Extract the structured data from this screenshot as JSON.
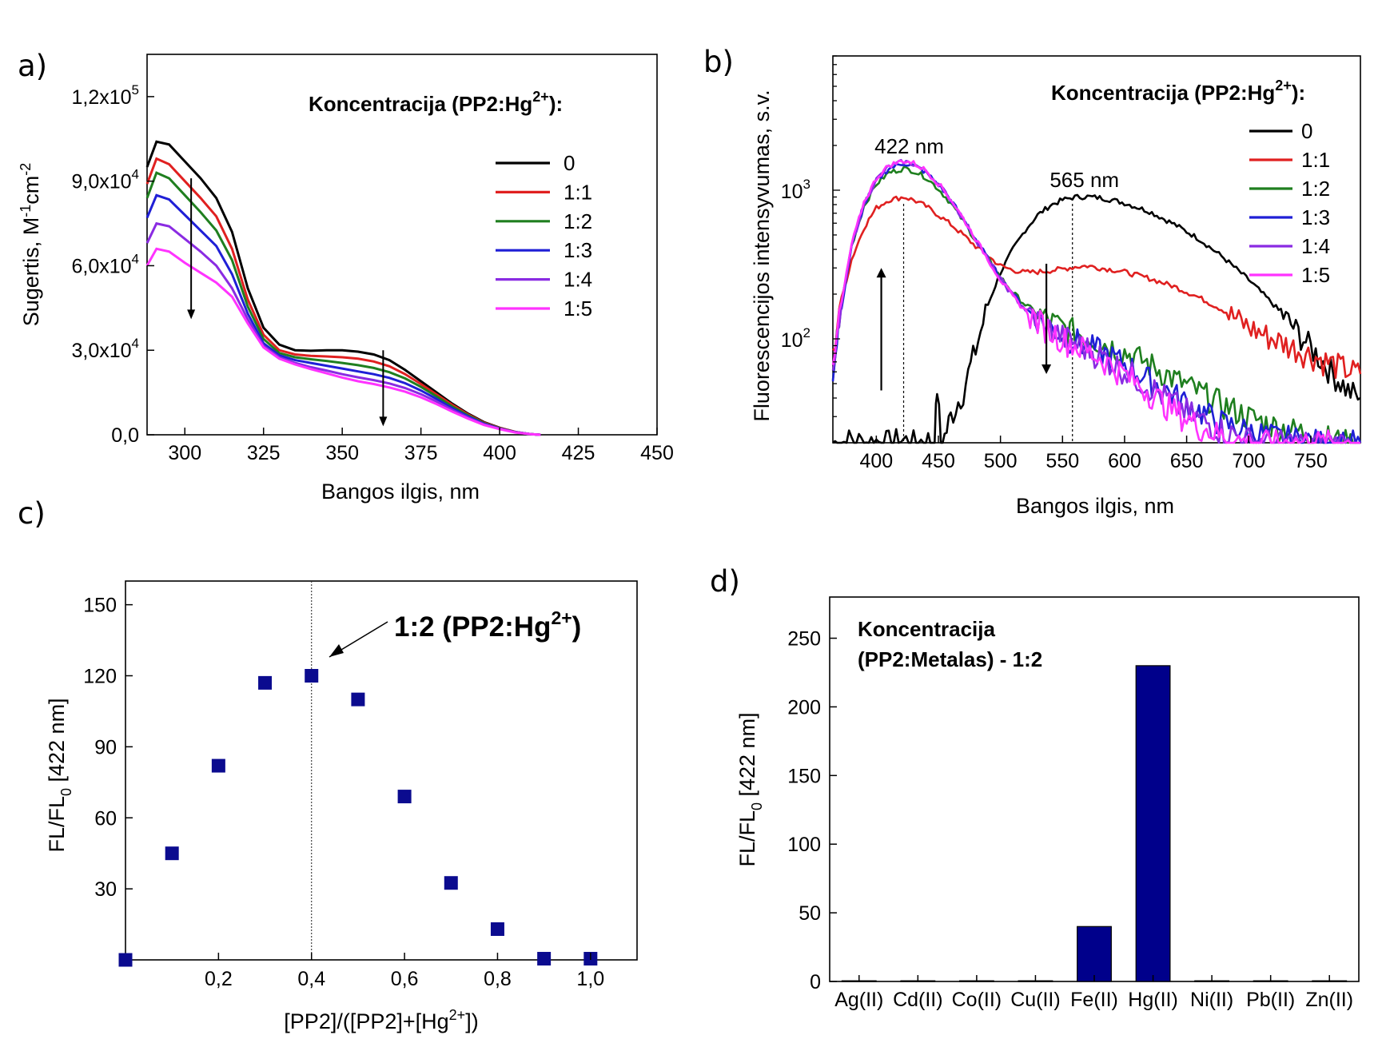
{
  "colors": {
    "s0": "#000000",
    "s11": "#e02020",
    "s12": "#1f7f1f",
    "s13": "#1f1fd6",
    "s14": "#8a2be2",
    "s15": "#ff33ff",
    "marker": "#0b0b8f",
    "bar": "#00008b"
  },
  "chart_data": [
    {
      "panel": "a)",
      "type": "line",
      "xlabel": "Bangos ilgis, nm",
      "ylabel_main": "Sugertis, M",
      "ylabel_sup1": "-1",
      "ylabel_mid": "cm",
      "ylabel_sup2": "-2",
      "xlim": [
        288,
        450
      ],
      "ylim": [
        0,
        135000
      ],
      "xticks": [
        "300",
        "325",
        "350",
        "375",
        "400",
        "425",
        "450"
      ],
      "yticks": [
        {
          "value": 0,
          "label": "0,0",
          "exp": ""
        },
        {
          "value": 30000,
          "label": "3,0x10",
          "exp": "4"
        },
        {
          "value": 60000,
          "label": "6,0x10",
          "exp": "4"
        },
        {
          "value": 90000,
          "label": "9,0x10",
          "exp": "4"
        },
        {
          "value": 120000,
          "label": "1,2x10",
          "exp": "5"
        }
      ],
      "legend_title": "Koncentracija (PP2:Hg",
      "legend_title_sup": "2+",
      "legend_title_end": "):",
      "legend_position": "right",
      "arrows": [
        {
          "x": 302,
          "from": 91000,
          "to": 41000
        },
        {
          "x": 363,
          "from": 30000,
          "to": 3000
        }
      ],
      "series": [
        {
          "name": "0",
          "x": [
            288,
            291,
            295,
            300,
            305,
            310,
            315,
            320,
            325,
            330,
            335,
            340,
            345,
            350,
            355,
            360,
            365,
            370,
            375,
            380,
            385,
            390,
            395,
            400,
            405,
            410,
            413
          ],
          "y": [
            95000,
            104000,
            103000,
            97000,
            91000,
            84000,
            72000,
            52000,
            38000,
            32000,
            30000,
            29800,
            30000,
            30000,
            29500,
            28500,
            26500,
            23000,
            19000,
            15000,
            11000,
            7500,
            4500,
            2500,
            1000,
            200,
            0
          ]
        },
        {
          "name": "1:1",
          "x": [
            288,
            291,
            295,
            300,
            305,
            310,
            315,
            320,
            325,
            330,
            335,
            340,
            345,
            350,
            355,
            360,
            365,
            370,
            375,
            380,
            385,
            390,
            395,
            400,
            405,
            410,
            413
          ],
          "y": [
            89000,
            98000,
            96000,
            90000,
            84000,
            77500,
            66000,
            48000,
            35500,
            30000,
            28500,
            28000,
            27800,
            27500,
            27000,
            26000,
            24300,
            21500,
            18000,
            14300,
            10600,
            7200,
            4300,
            2400,
            1000,
            200,
            0
          ]
        },
        {
          "name": "1:2",
          "x": [
            288,
            291,
            295,
            300,
            305,
            310,
            315,
            320,
            325,
            330,
            335,
            340,
            345,
            350,
            355,
            360,
            365,
            370,
            375,
            380,
            385,
            390,
            395,
            400,
            405,
            410,
            413
          ],
          "y": [
            84000,
            93000,
            91000,
            85000,
            79000,
            72500,
            62000,
            45500,
            34000,
            29000,
            27500,
            26800,
            26200,
            25500,
            24700,
            23700,
            22200,
            20000,
            17000,
            13600,
            10000,
            6900,
            4100,
            2300,
            900,
            200,
            0
          ]
        },
        {
          "name": "1:3",
          "x": [
            288,
            291,
            295,
            300,
            305,
            310,
            315,
            320,
            325,
            330,
            335,
            340,
            345,
            350,
            355,
            360,
            365,
            370,
            375,
            380,
            385,
            390,
            395,
            400,
            405,
            410,
            413
          ],
          "y": [
            77000,
            85000,
            83500,
            78000,
            72500,
            67000,
            57000,
            43000,
            32500,
            28200,
            26500,
            25500,
            24500,
            23500,
            22500,
            21500,
            20200,
            18300,
            15700,
            12700,
            9400,
            6500,
            3900,
            2200,
            900,
            200,
            0
          ]
        },
        {
          "name": "1:4",
          "x": [
            288,
            291,
            295,
            300,
            305,
            310,
            315,
            320,
            325,
            330,
            335,
            340,
            345,
            350,
            355,
            360,
            365,
            370,
            375,
            380,
            385,
            390,
            395,
            400,
            405,
            410,
            413
          ],
          "y": [
            68000,
            75000,
            74000,
            69500,
            65000,
            60000,
            52000,
            41000,
            31500,
            27500,
            25500,
            24000,
            22800,
            21500,
            20400,
            19400,
            18200,
            16600,
            14400,
            11800,
            8800,
            6100,
            3700,
            2100,
            900,
            200,
            0
          ]
        },
        {
          "name": "1:5",
          "x": [
            288,
            291,
            295,
            300,
            305,
            310,
            315,
            320,
            325,
            330,
            335,
            340,
            345,
            350,
            355,
            360,
            365,
            370,
            375,
            380,
            385,
            390,
            395,
            400,
            405,
            410,
            413
          ],
          "y": [
            60000,
            66000,
            65000,
            61000,
            57500,
            54000,
            49000,
            39500,
            31000,
            27000,
            25000,
            23300,
            21800,
            20300,
            19000,
            18000,
            16800,
            15300,
            13300,
            10900,
            8200,
            5700,
            3500,
            2000,
            800,
            200,
            0
          ]
        }
      ]
    },
    {
      "panel": "b)",
      "type": "line",
      "xlabel": "Bangos ilgis, nm",
      "ylabel": "Fluorescencijos intensyvumas, s.v.",
      "xlim": [
        365,
        790
      ],
      "ylim": [
        20,
        8000
      ],
      "yscale": "log",
      "xticks": [
        "400",
        "450",
        "500",
        "550",
        "600",
        "650",
        "700",
        "750"
      ],
      "yticks": [
        {
          "value": 100,
          "base": "10",
          "exp": "2"
        },
        {
          "value": 1000,
          "base": "10",
          "exp": "3"
        }
      ],
      "legend_title": "Koncentracija (PP2:Hg",
      "legend_title_sup": "2+",
      "legend_title_end": "):",
      "legend_position": "top-right",
      "annotations": [
        {
          "text": "422 nm",
          "x": 422
        },
        {
          "text": "565 nm",
          "x": 558
        }
      ],
      "arrows": [
        {
          "x": 404,
          "from": 45,
          "to": 300
        },
        {
          "x": 537,
          "from": 320,
          "to": 58
        }
      ],
      "series": [
        {
          "name": "0",
          "x": [
            365,
            372,
            380,
            390,
            400,
            410,
            420,
            430,
            440,
            447,
            449,
            452,
            455,
            460,
            470,
            480,
            490,
            500,
            510,
            520,
            530,
            540,
            550,
            560,
            570,
            580,
            590,
            600,
            620,
            640,
            660,
            680,
            700,
            720,
            740,
            760,
            780,
            790
          ],
          "y": [
            20,
            20,
            21,
            20,
            20.5,
            20,
            21,
            20,
            21,
            20,
            48,
            20,
            22,
            30,
            45,
            85,
            170,
            280,
            400,
            540,
            680,
            790,
            860,
            900,
            905,
            890,
            860,
            820,
            720,
            590,
            470,
            350,
            250,
            170,
            110,
            70,
            45,
            40
          ]
        },
        {
          "name": "1:1",
          "x": [
            365,
            370,
            380,
            390,
            400,
            410,
            422,
            430,
            440,
            450,
            460,
            470,
            480,
            490,
            500,
            510,
            520,
            530,
            540,
            550,
            560,
            570,
            580,
            590,
            600,
            620,
            640,
            660,
            680,
            700,
            720,
            740,
            760,
            780,
            790
          ],
          "y": [
            75,
            160,
            340,
            560,
            760,
            860,
            900,
            860,
            780,
            680,
            590,
            500,
            420,
            360,
            310,
            290,
            280,
            282,
            288,
            295,
            305,
            310,
            300,
            292,
            282,
            255,
            225,
            190,
            155,
            120,
            100,
            85,
            72,
            62,
            58
          ]
        },
        {
          "name": "1:2",
          "x": [
            365,
            370,
            380,
            390,
            400,
            410,
            422,
            430,
            440,
            450,
            460,
            470,
            480,
            490,
            500,
            510,
            520,
            530,
            540,
            550,
            560,
            570,
            580,
            600,
            620,
            640,
            660,
            680,
            700,
            720,
            740,
            760,
            780,
            790
          ],
          "y": [
            55,
            140,
            420,
            780,
            1100,
            1310,
            1400,
            1350,
            1220,
            1020,
            820,
            620,
            460,
            345,
            260,
            205,
            170,
            148,
            132,
            120,
            112,
            104,
            96,
            82,
            68,
            54,
            44,
            36,
            30,
            26,
            24,
            22,
            20,
            20
          ]
        },
        {
          "name": "1:3",
          "x": [
            365,
            370,
            380,
            390,
            400,
            410,
            422,
            430,
            440,
            450,
            460,
            470,
            480,
            490,
            500,
            510,
            520,
            530,
            540,
            550,
            560,
            570,
            580,
            600,
            620,
            640,
            660,
            680,
            700,
            720,
            740,
            760,
            780,
            790
          ],
          "y": [
            50,
            130,
            410,
            790,
            1150,
            1400,
            1520,
            1460,
            1320,
            1090,
            860,
            640,
            470,
            345,
            255,
            200,
            160,
            138,
            120,
            108,
            98,
            90,
            83,
            68,
            53,
            42,
            33,
            27,
            24,
            22,
            21,
            20,
            20,
            20
          ]
        },
        {
          "name": "1:4",
          "x": [
            365,
            370,
            380,
            390,
            400,
            410,
            422,
            430,
            440,
            450,
            460,
            470,
            480,
            490,
            500,
            510,
            520,
            530,
            540,
            550,
            560,
            570,
            580,
            600,
            620,
            640,
            660,
            680,
            700,
            720,
            740,
            760,
            780,
            790
          ],
          "y": [
            52,
            135,
            420,
            810,
            1180,
            1440,
            1560,
            1500,
            1340,
            1100,
            865,
            640,
            470,
            342,
            252,
            196,
            158,
            135,
            117,
            104,
            94,
            86,
            78,
            62,
            48,
            37,
            29,
            24,
            21,
            20,
            20,
            20,
            20,
            20
          ]
        },
        {
          "name": "1:5",
          "x": [
            365,
            370,
            380,
            390,
            400,
            410,
            422,
            430,
            440,
            450,
            460,
            470,
            480,
            490,
            500,
            510,
            520,
            530,
            540,
            550,
            560,
            570,
            580,
            600,
            620,
            640,
            660,
            680,
            700,
            720,
            740,
            760,
            780,
            790
          ],
          "y": [
            55,
            140,
            430,
            830,
            1200,
            1470,
            1580,
            1520,
            1360,
            1110,
            870,
            645,
            470,
            342,
            250,
            192,
            155,
            132,
            114,
            101,
            91,
            83,
            75,
            58,
            44,
            33,
            26,
            22,
            20,
            20,
            20,
            20,
            20,
            20
          ]
        }
      ]
    },
    {
      "panel": "c)",
      "type": "scatter",
      "xlabel_main": "[PP2]/([PP2]+[Hg",
      "xlabel_sup": "2+",
      "xlabel_end": "])",
      "ylabel_main": "FL/FL",
      "ylabel_sub": "0",
      "ylabel_end": " [422 nm]",
      "xlim": [
        0,
        1.1
      ],
      "ylim": [
        0,
        160
      ],
      "xticks": [
        {
          "value": 0.2,
          "label": "0,2"
        },
        {
          "value": 0.4,
          "label": "0,4"
        },
        {
          "value": 0.6,
          "label": "0,6"
        },
        {
          "value": 0.8,
          "label": "0,8"
        },
        {
          "value": 1.0,
          "label": "1,0"
        }
      ],
      "yticks": [
        "30",
        "60",
        "90",
        "120",
        "150"
      ],
      "vline_x": 0.4,
      "annotation_main": "1:2 (PP2:Hg",
      "annotation_sup": "2+",
      "annotation_end": ")",
      "points": [
        {
          "x": 0.0,
          "y": 0
        },
        {
          "x": 0.1,
          "y": 45
        },
        {
          "x": 0.2,
          "y": 82
        },
        {
          "x": 0.3,
          "y": 117
        },
        {
          "x": 0.4,
          "y": 120
        },
        {
          "x": 0.5,
          "y": 110
        },
        {
          "x": 0.6,
          "y": 69
        },
        {
          "x": 0.7,
          "y": 32.5
        },
        {
          "x": 0.8,
          "y": 13
        },
        {
          "x": 0.9,
          "y": 0.5
        },
        {
          "x": 1.0,
          "y": 0.5
        }
      ]
    },
    {
      "panel": "d)",
      "type": "bar",
      "ylabel_main": "FL/FL",
      "ylabel_sub": "0",
      "ylabel_end": " [422 nm]",
      "ylim": [
        0,
        280
      ],
      "yticks": [
        "0",
        "50",
        "100",
        "150",
        "200",
        "250"
      ],
      "legend_line1": "Koncentracija",
      "legend_line2": "(PP2:Metalas) - 1:2",
      "categories": [
        "Ag(II)",
        "Cd(II)",
        "Co(II)",
        "Cu(II)",
        "Fe(II)",
        "Hg(II)",
        "Ni(II)",
        "Pb(II)",
        "Zn(II)"
      ],
      "values": [
        0.5,
        0.5,
        0.5,
        0.5,
        40,
        230,
        0.5,
        0.5,
        0.5
      ]
    }
  ]
}
